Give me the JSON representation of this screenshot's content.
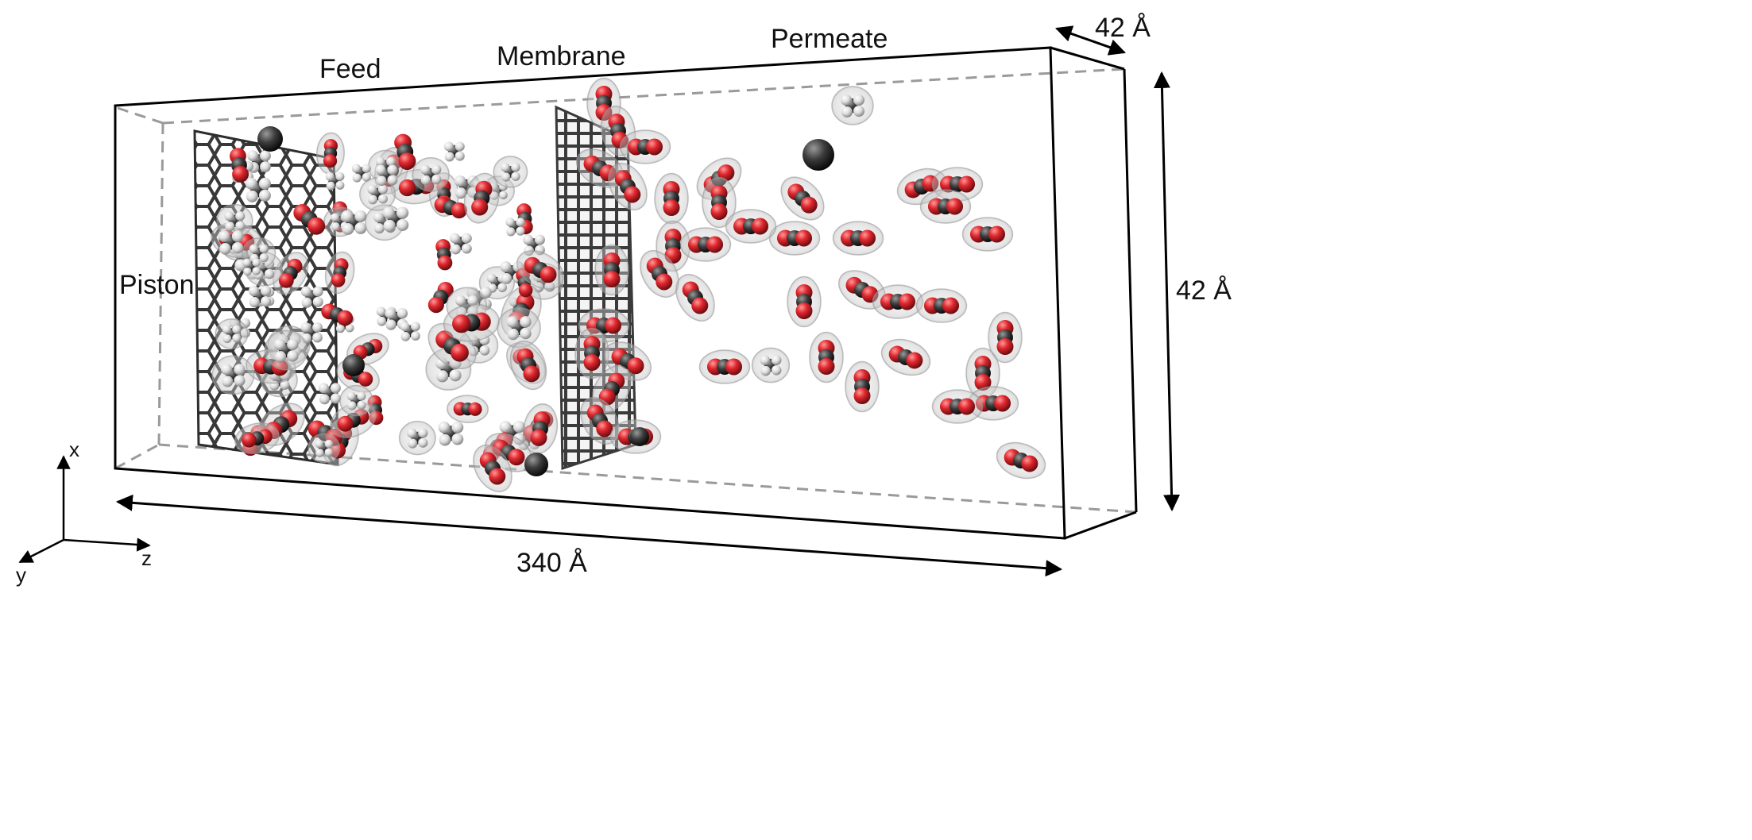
{
  "labels": {
    "piston": "Piston",
    "feed": "Feed",
    "membrane": "Membrane",
    "permeate": "Permeate"
  },
  "dimensions": {
    "length": "340 Å",
    "height": "42 Å",
    "depth": "42 Å"
  },
  "axes": {
    "x": "x",
    "y": "y",
    "z": "z"
  },
  "colors": {
    "oxygen": "#d8262c",
    "carbon": "#3a3a3a",
    "hydrogen": "#e6e6e6",
    "graphene": "#2d2d2d",
    "shell": "#b9b9b9",
    "box_edge": "#000000",
    "box_hidden_edge": "#9a9a9a"
  }
}
